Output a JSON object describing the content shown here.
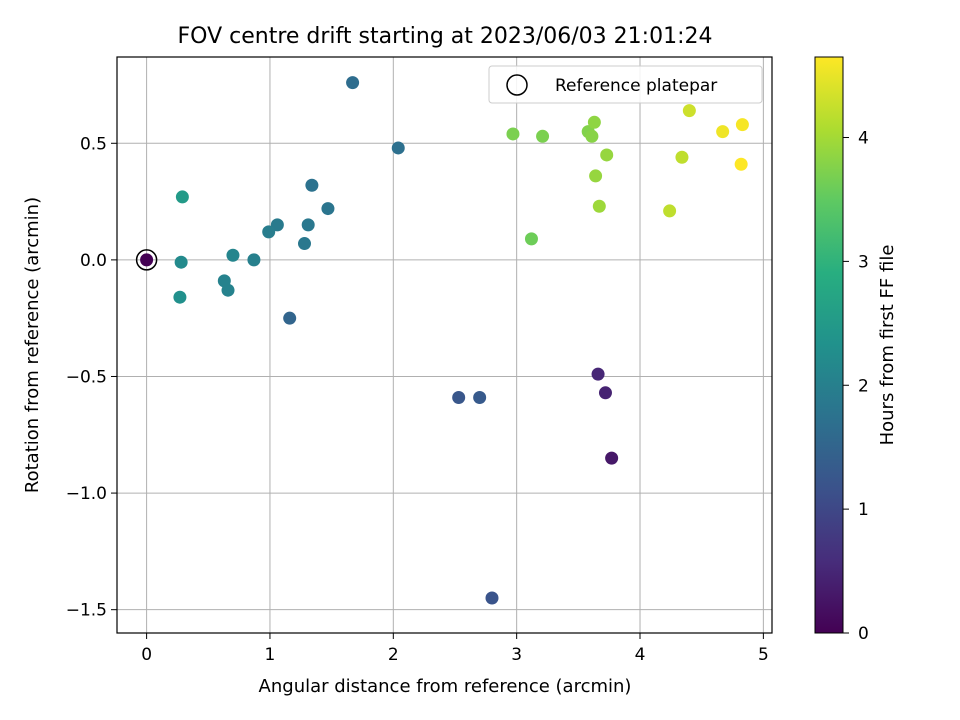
{
  "chart_data": {
    "type": "scatter",
    "title": "FOV centre drift starting at 2023/06/03 21:01:24",
    "xlabel": "Angular distance from reference (arcmin)",
    "ylabel": "Rotation from reference (arcmin)",
    "xlim": [
      -0.24,
      5.07
    ],
    "ylim": [
      -1.6,
      0.87
    ],
    "xticks": [
      0,
      1,
      2,
      3,
      4,
      5
    ],
    "yticks": [
      -1.5,
      -1.0,
      -0.5,
      0.0,
      0.5
    ],
    "xtick_labels": [
      "0",
      "1",
      "2",
      "3",
      "4",
      "5"
    ],
    "ytick_labels": [
      "−1.5",
      "−1.0",
      "−0.5",
      "0.0",
      "0.5"
    ],
    "grid": true,
    "colormap": "viridis",
    "colorbar": {
      "label": "Hours from first FF file",
      "range": [
        0,
        4.65
      ],
      "ticks": [
        0,
        1,
        2,
        3,
        4
      ],
      "tick_labels": [
        "0",
        "1",
        "2",
        "3",
        "4"
      ]
    },
    "legend": {
      "position": "top-right",
      "entries": [
        "Reference platepar"
      ]
    },
    "reference_point": {
      "x": 0.0,
      "y": 0.0
    },
    "points": [
      {
        "x": 0.0,
        "y": 0.0,
        "hours": 0.0
      },
      {
        "x": 3.77,
        "y": -0.85,
        "hours": 0.3
      },
      {
        "x": 3.72,
        "y": -0.57,
        "hours": 0.45
      },
      {
        "x": 3.66,
        "y": -0.49,
        "hours": 0.5
      },
      {
        "x": 2.8,
        "y": -1.45,
        "hours": 1.2
      },
      {
        "x": 2.53,
        "y": -0.59,
        "hours": 1.25
      },
      {
        "x": 2.7,
        "y": -0.59,
        "hours": 1.3
      },
      {
        "x": 1.16,
        "y": -0.25,
        "hours": 1.5
      },
      {
        "x": 1.67,
        "y": 0.76,
        "hours": 1.65
      },
      {
        "x": 2.04,
        "y": 0.48,
        "hours": 1.7
      },
      {
        "x": 1.34,
        "y": 0.32,
        "hours": 1.75
      },
      {
        "x": 1.47,
        "y": 0.22,
        "hours": 1.8
      },
      {
        "x": 1.31,
        "y": 0.15,
        "hours": 1.85
      },
      {
        "x": 1.28,
        "y": 0.07,
        "hours": 1.85
      },
      {
        "x": 1.06,
        "y": 0.15,
        "hours": 1.9
      },
      {
        "x": 0.99,
        "y": 0.12,
        "hours": 1.95
      },
      {
        "x": 0.87,
        "y": 0.0,
        "hours": 2.0
      },
      {
        "x": 0.66,
        "y": -0.13,
        "hours": 2.05
      },
      {
        "x": 0.63,
        "y": -0.09,
        "hours": 2.05
      },
      {
        "x": 0.7,
        "y": 0.02,
        "hours": 2.1
      },
      {
        "x": 0.28,
        "y": -0.01,
        "hours": 2.2
      },
      {
        "x": 0.27,
        "y": -0.16,
        "hours": 2.3
      },
      {
        "x": 0.29,
        "y": 0.27,
        "hours": 2.5
      },
      {
        "x": 3.12,
        "y": 0.09,
        "hours": 3.6
      },
      {
        "x": 2.97,
        "y": 0.54,
        "hours": 3.7
      },
      {
        "x": 3.21,
        "y": 0.53,
        "hours": 3.7
      },
      {
        "x": 3.58,
        "y": 0.55,
        "hours": 3.75
      },
      {
        "x": 3.61,
        "y": 0.53,
        "hours": 3.8
      },
      {
        "x": 3.63,
        "y": 0.59,
        "hours": 3.85
      },
      {
        "x": 3.73,
        "y": 0.45,
        "hours": 3.9
      },
      {
        "x": 3.64,
        "y": 0.36,
        "hours": 3.9
      },
      {
        "x": 3.67,
        "y": 0.23,
        "hours": 3.95
      },
      {
        "x": 4.24,
        "y": 0.21,
        "hours": 4.2
      },
      {
        "x": 4.34,
        "y": 0.44,
        "hours": 4.2
      },
      {
        "x": 4.4,
        "y": 0.64,
        "hours": 4.3
      },
      {
        "x": 4.67,
        "y": 0.55,
        "hours": 4.55
      },
      {
        "x": 4.83,
        "y": 0.58,
        "hours": 4.6
      },
      {
        "x": 4.82,
        "y": 0.41,
        "hours": 4.65
      }
    ]
  }
}
